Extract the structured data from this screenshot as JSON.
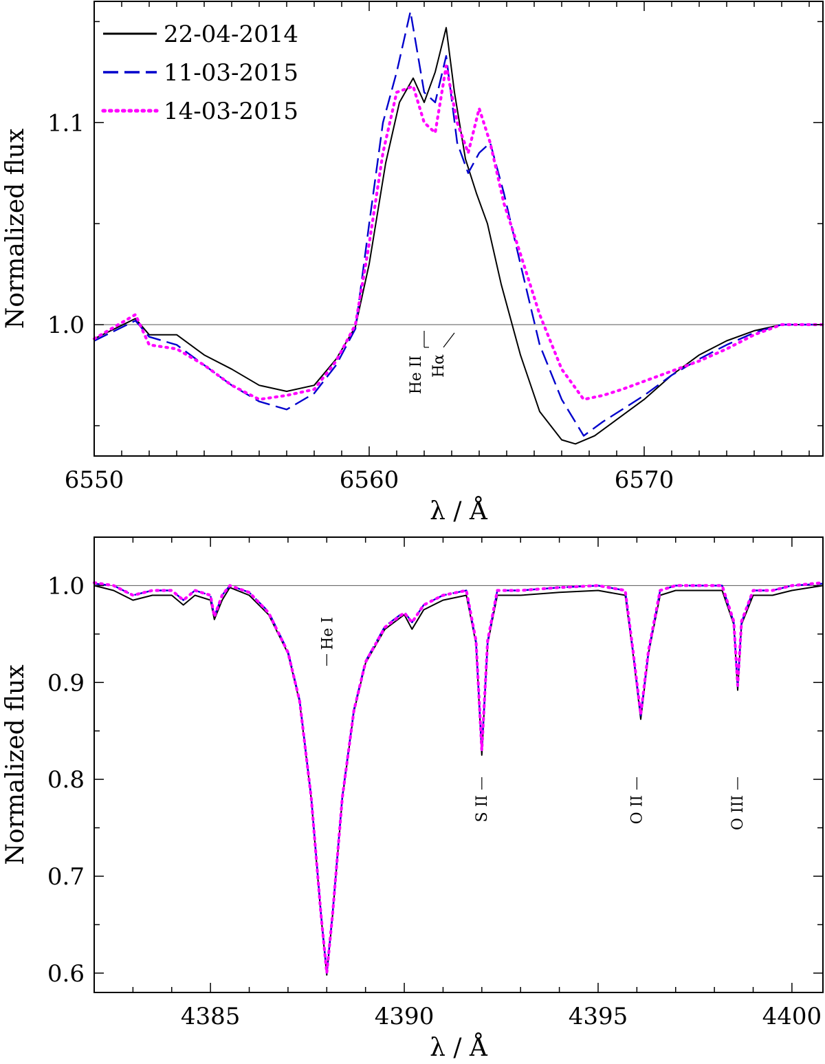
{
  "chart_data": [
    {
      "type": "line",
      "title": "",
      "xlabel": "λ / Å",
      "ylabel": "Normalized flux",
      "xlim": [
        6550,
        6576.5
      ],
      "ylim": [
        0.935,
        1.16
      ],
      "xticks": [
        6550,
        6560,
        6570
      ],
      "xtick_labels": [
        "6550",
        "6560",
        "6570"
      ],
      "yticks": [
        1.0,
        1.1
      ],
      "ytick_labels": [
        "1.0",
        "1.1"
      ],
      "reference_line": 1.0,
      "legend": {
        "placement": "top-left",
        "entries": [
          "22-04-2014",
          "11-03-2015",
          "14-03-2015"
        ]
      },
      "line_labels": [
        {
          "text": "He II",
          "x": 6562.0
        },
        {
          "text": "Hα",
          "x": 6562.8
        }
      ],
      "series": [
        {
          "name": "22-04-2014",
          "color": "#000000",
          "style": "solid",
          "x": [
            6550,
            6551.5,
            6552,
            6553,
            6554,
            6555,
            6556,
            6557,
            6558,
            6558.8,
            6559.5,
            6560,
            6560.6,
            6561.1,
            6561.6,
            6562.0,
            6562.4,
            6562.8,
            6563.1,
            6563.5,
            6563.9,
            6564.3,
            6564.8,
            6565.5,
            6566.2,
            6567.0,
            6567.5,
            6568.2,
            6569,
            6570,
            6571,
            6572,
            6573,
            6574,
            6575,
            6576.5
          ],
          "y": [
            0.993,
            1.003,
            0.995,
            0.995,
            0.985,
            0.978,
            0.97,
            0.967,
            0.97,
            0.983,
            0.999,
            1.03,
            1.08,
            1.11,
            1.122,
            1.11,
            1.125,
            1.147,
            1.115,
            1.082,
            1.065,
            1.05,
            1.02,
            0.985,
            0.957,
            0.943,
            0.941,
            0.945,
            0.953,
            0.963,
            0.975,
            0.985,
            0.992,
            0.997,
            1.0,
            1.0
          ]
        },
        {
          "name": "11-03-2015",
          "color": "#0000cc",
          "style": "dashed",
          "x": [
            6550,
            6551.5,
            6552,
            6553,
            6554,
            6555,
            6556,
            6557,
            6558,
            6558.8,
            6559.5,
            6560,
            6560.5,
            6561.0,
            6561.5,
            6562.0,
            6562.4,
            6562.8,
            6563.2,
            6563.6,
            6564.0,
            6564.4,
            6564.9,
            6565.5,
            6566.2,
            6567.0,
            6567.8,
            6568.5,
            6569.2,
            6570,
            6571,
            6572,
            6573,
            6574,
            6575,
            6576.5
          ],
          "y": [
            0.992,
            1.002,
            0.994,
            0.99,
            0.98,
            0.97,
            0.962,
            0.958,
            0.966,
            0.98,
            0.998,
            1.05,
            1.1,
            1.125,
            1.155,
            1.115,
            1.11,
            1.133,
            1.09,
            1.075,
            1.085,
            1.09,
            1.065,
            1.03,
            0.99,
            0.963,
            0.945,
            0.952,
            0.958,
            0.965,
            0.975,
            0.983,
            0.99,
            0.996,
            1.0,
            1.0
          ]
        },
        {
          "name": "14-03-2015",
          "color": "#ff00ff",
          "style": "dotted",
          "x": [
            6550,
            6551.5,
            6552,
            6553,
            6554,
            6555,
            6556,
            6557,
            6558,
            6558.8,
            6559.5,
            6560,
            6560.5,
            6561.0,
            6561.6,
            6562.0,
            6562.4,
            6562.8,
            6563.2,
            6563.6,
            6564.0,
            6564.4,
            6564.9,
            6565.5,
            6566.2,
            6567.0,
            6567.8,
            6568.5,
            6569.2,
            6570,
            6571,
            6572,
            6573,
            6574,
            6575,
            6576.5
          ],
          "y": [
            0.993,
            1.005,
            0.99,
            0.988,
            0.98,
            0.97,
            0.963,
            0.965,
            0.968,
            0.982,
            1.0,
            1.04,
            1.085,
            1.115,
            1.118,
            1.1,
            1.095,
            1.128,
            1.1,
            1.085,
            1.107,
            1.09,
            1.06,
            1.035,
            1.005,
            0.978,
            0.963,
            0.965,
            0.968,
            0.972,
            0.977,
            0.982,
            0.988,
            0.995,
            1.0,
            1.0
          ]
        }
      ]
    },
    {
      "type": "line",
      "title": "",
      "xlabel": "λ / Å",
      "ylabel": "Normalized flux",
      "xlim": [
        4382,
        4400.8
      ],
      "ylim": [
        0.58,
        1.05
      ],
      "xticks": [
        4385,
        4390,
        4395,
        4400
      ],
      "xtick_labels": [
        "4385",
        "4390",
        "4395",
        "4400"
      ],
      "yticks": [
        0.6,
        0.7,
        0.8,
        0.9,
        1.0
      ],
      "ytick_labels": [
        "0.6",
        "0.7",
        "0.8",
        "0.9",
        "1.0"
      ],
      "reference_line": 1.0,
      "line_labels": [
        {
          "text": "He I",
          "x": 4388.0
        },
        {
          "text": "S II",
          "x": 4392.0
        },
        {
          "text": "O II",
          "x": 4396.0
        },
        {
          "text": "O III",
          "x": 4398.6
        }
      ],
      "series": [
        {
          "name": "22-04-2014",
          "color": "#000000",
          "style": "solid",
          "x": [
            4382,
            4382.5,
            4383,
            4383.5,
            4384,
            4384.3,
            4384.6,
            4385,
            4385.1,
            4385.3,
            4385.5,
            4386,
            4386.5,
            4387,
            4387.3,
            4387.6,
            4387.85,
            4388,
            4388.15,
            4388.4,
            4388.7,
            4389,
            4389.5,
            4390,
            4390.2,
            4390.5,
            4391,
            4391.6,
            4391.85,
            4392.0,
            4392.15,
            4392.4,
            4393,
            4394,
            4395,
            4395.7,
            4395.9,
            4396.1,
            4396.3,
            4396.6,
            4397,
            4397.5,
            4398.2,
            4398.5,
            4398.6,
            4398.7,
            4399,
            4399.5,
            4400,
            4400.8
          ],
          "y": [
            1.0,
            0.995,
            0.985,
            0.99,
            0.99,
            0.98,
            0.99,
            0.985,
            0.965,
            0.985,
            0.998,
            0.99,
            0.97,
            0.93,
            0.88,
            0.78,
            0.66,
            0.598,
            0.66,
            0.78,
            0.87,
            0.92,
            0.955,
            0.97,
            0.955,
            0.975,
            0.985,
            0.99,
            0.94,
            0.825,
            0.94,
            0.99,
            0.99,
            0.993,
            0.995,
            0.99,
            0.93,
            0.862,
            0.93,
            0.99,
            0.995,
            0.995,
            0.995,
            0.96,
            0.892,
            0.96,
            0.99,
            0.99,
            0.995,
            1.0
          ]
        },
        {
          "name": "11-03-2015",
          "color": "#0000cc",
          "style": "dashed",
          "x": [
            4382,
            4382.5,
            4383,
            4383.5,
            4384,
            4384.3,
            4384.6,
            4385,
            4385.1,
            4385.3,
            4385.5,
            4386,
            4386.5,
            4387,
            4387.3,
            4387.6,
            4387.85,
            4388,
            4388.15,
            4388.4,
            4388.7,
            4389,
            4389.5,
            4390,
            4390.2,
            4390.5,
            4391,
            4391.6,
            4391.85,
            4392.0,
            4392.15,
            4392.4,
            4393,
            4394,
            4395,
            4395.7,
            4395.9,
            4396.1,
            4396.3,
            4396.6,
            4397,
            4397.5,
            4398.2,
            4398.5,
            4398.6,
            4398.7,
            4399,
            4399.5,
            4400,
            4400.8
          ],
          "y": [
            1.002,
            1.0,
            0.99,
            0.995,
            0.995,
            0.985,
            0.995,
            0.99,
            0.968,
            0.99,
            1.0,
            0.993,
            0.973,
            0.932,
            0.882,
            0.782,
            0.662,
            0.6,
            0.662,
            0.782,
            0.872,
            0.922,
            0.958,
            0.973,
            0.962,
            0.98,
            0.99,
            0.995,
            0.942,
            0.83,
            0.942,
            0.995,
            0.995,
            0.998,
            1.0,
            0.995,
            0.932,
            0.866,
            0.932,
            0.995,
            1.0,
            1.0,
            1.0,
            0.962,
            0.896,
            0.962,
            0.995,
            0.995,
            1.0,
            1.002
          ]
        },
        {
          "name": "14-03-2015",
          "color": "#ff00ff",
          "style": "dotted",
          "x": [
            4382,
            4382.5,
            4383,
            4383.5,
            4384,
            4384.3,
            4384.6,
            4385,
            4385.1,
            4385.3,
            4385.5,
            4386,
            4386.5,
            4387,
            4387.3,
            4387.6,
            4387.85,
            4388,
            4388.15,
            4388.4,
            4388.7,
            4389,
            4389.5,
            4390,
            4390.2,
            4390.5,
            4391,
            4391.6,
            4391.85,
            4392.0,
            4392.15,
            4392.4,
            4393,
            4394,
            4395,
            4395.7,
            4395.9,
            4396.1,
            4396.3,
            4396.6,
            4397,
            4397.5,
            4398.2,
            4398.5,
            4398.6,
            4398.7,
            4399,
            4399.5,
            4400,
            4400.8
          ],
          "y": [
            1.003,
            1.0,
            0.99,
            0.995,
            0.995,
            0.985,
            0.995,
            0.99,
            0.968,
            0.99,
            1.0,
            0.993,
            0.972,
            0.931,
            0.881,
            0.781,
            0.661,
            0.6,
            0.661,
            0.781,
            0.871,
            0.921,
            0.957,
            0.972,
            0.962,
            0.98,
            0.99,
            0.995,
            0.943,
            0.83,
            0.943,
            0.995,
            0.995,
            0.998,
            1.0,
            0.995,
            0.933,
            0.867,
            0.933,
            0.995,
            1.0,
            1.0,
            1.0,
            0.963,
            0.897,
            0.963,
            0.995,
            0.995,
            1.0,
            1.003
          ]
        }
      ]
    }
  ]
}
